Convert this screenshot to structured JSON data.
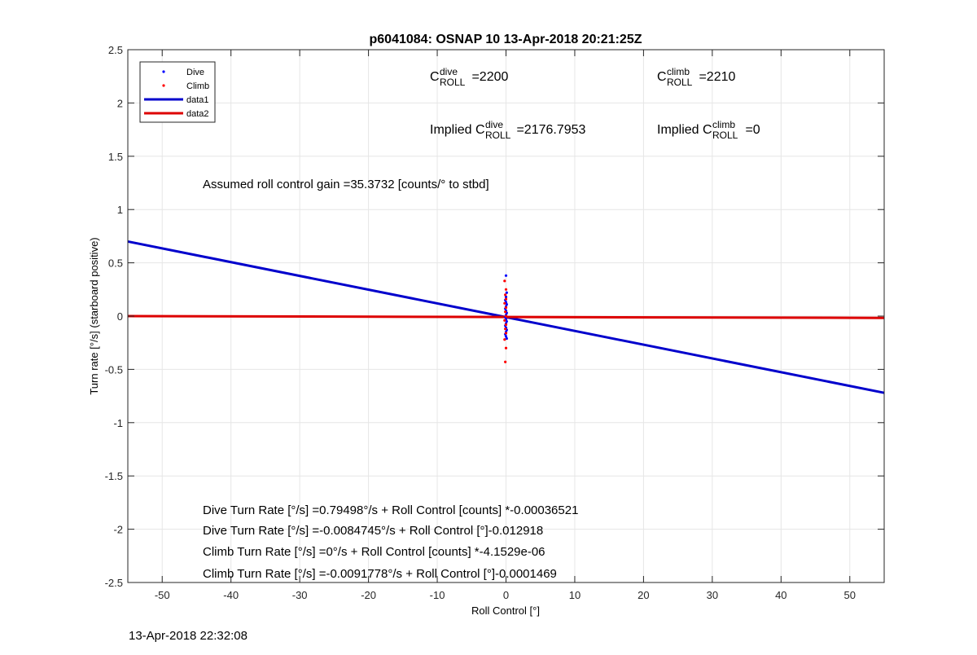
{
  "footer_timestamp": "13-Apr-2018 22:32:08",
  "chart_data": {
    "type": "scatter",
    "title": "p6041084: OSNAP 10 13-Apr-2018 20:21:25Z",
    "xlabel": "Roll Control [°]",
    "ylabel": "Turn rate [°/s] (starboard positive)",
    "xlim": [
      -55,
      55
    ],
    "ylim": [
      -2.5,
      2.5
    ],
    "x_ticks": [
      -50,
      -40,
      -30,
      -20,
      -10,
      0,
      10,
      20,
      30,
      40,
      50
    ],
    "y_ticks": [
      -2.5,
      -2,
      -1.5,
      -1,
      -0.5,
      0,
      0.5,
      1,
      1.5,
      2,
      2.5
    ],
    "grid": true,
    "legend_position": "top-left",
    "legend": [
      {
        "label": "Dive",
        "kind": "marker",
        "color": "#0000ff"
      },
      {
        "label": "Climb",
        "kind": "marker",
        "color": "#ff0000"
      },
      {
        "label": "data1",
        "kind": "line",
        "color": "#0000cc"
      },
      {
        "label": "data2",
        "kind": "line",
        "color": "#dd0000"
      }
    ],
    "series": [
      {
        "name": "Dive",
        "kind": "scatter",
        "color": "#0000ff",
        "points": [
          [
            0.0,
            0.38
          ],
          [
            0.1,
            0.22
          ],
          [
            0.0,
            0.18
          ],
          [
            -0.1,
            0.15
          ],
          [
            0.0,
            0.13
          ],
          [
            0.1,
            0.11
          ],
          [
            0.0,
            0.09
          ],
          [
            -0.1,
            0.07
          ],
          [
            0.0,
            0.05
          ],
          [
            0.1,
            0.03
          ],
          [
            0.0,
            0.01
          ],
          [
            -0.1,
            -0.01
          ],
          [
            0.0,
            -0.03
          ],
          [
            0.1,
            -0.05
          ],
          [
            0.0,
            -0.07
          ],
          [
            -0.1,
            -0.09
          ],
          [
            0.0,
            -0.11
          ],
          [
            0.1,
            -0.13
          ],
          [
            0.0,
            -0.15
          ],
          [
            -0.1,
            -0.17
          ],
          [
            0.0,
            -0.19
          ],
          [
            0.1,
            -0.21
          ]
        ]
      },
      {
        "name": "Climb",
        "kind": "scatter",
        "color": "#ff0000",
        "points": [
          [
            -0.2,
            0.33
          ],
          [
            0.0,
            0.25
          ],
          [
            -0.1,
            0.2
          ],
          [
            0.0,
            0.16
          ],
          [
            -0.2,
            0.12
          ],
          [
            0.0,
            0.08
          ],
          [
            -0.1,
            0.04
          ],
          [
            0.0,
            0.0
          ],
          [
            -0.2,
            -0.04
          ],
          [
            0.0,
            -0.08
          ],
          [
            -0.1,
            -0.12
          ],
          [
            0.0,
            -0.16
          ],
          [
            -0.2,
            -0.22
          ],
          [
            0.0,
            -0.3
          ],
          [
            -0.1,
            -0.43
          ]
        ]
      },
      {
        "name": "data1",
        "kind": "line",
        "color": "#0000cc",
        "points": [
          [
            -55,
            0.7
          ],
          [
            55,
            -0.72
          ]
        ]
      },
      {
        "name": "data2",
        "kind": "line",
        "color": "#dd0000",
        "points": [
          [
            -55,
            0.0
          ],
          [
            55,
            -0.017
          ]
        ]
      }
    ],
    "annotations": {
      "c_roll_dive": "C",
      "c_roll_dive_sup": "dive",
      "c_roll_dive_sub": "ROLL",
      "c_roll_dive_val": " =2200",
      "c_roll_climb": "C",
      "c_roll_climb_sup": "climb",
      "c_roll_climb_sub": "ROLL",
      "c_roll_climb_val": " =2210",
      "implied_dive_prefix": "Implied C",
      "implied_dive_sup": "dive",
      "implied_dive_sub": "ROLL",
      "implied_dive_val": " =2176.7953",
      "implied_climb_prefix": "Implied C",
      "implied_climb_sup": "climb",
      "implied_climb_sub": "ROLL",
      "implied_climb_val": " =0",
      "gain": "Assumed roll control gain =35.3732 [counts/° to stbd]",
      "fit1": "Dive Turn Rate [°/s] =0.79498°/s + Roll Control [counts] *-0.00036521",
      "fit2": "Dive Turn Rate [°/s] =-0.0084745°/s + Roll Control [°]-0.012918",
      "fit3": "Climb Turn Rate [°/s] =0°/s + Roll Control [counts] *-4.1529e-06",
      "fit4": "Climb Turn Rate [°/s] =-0.0091778°/s + Roll Control [°]-0.0001469"
    }
  }
}
